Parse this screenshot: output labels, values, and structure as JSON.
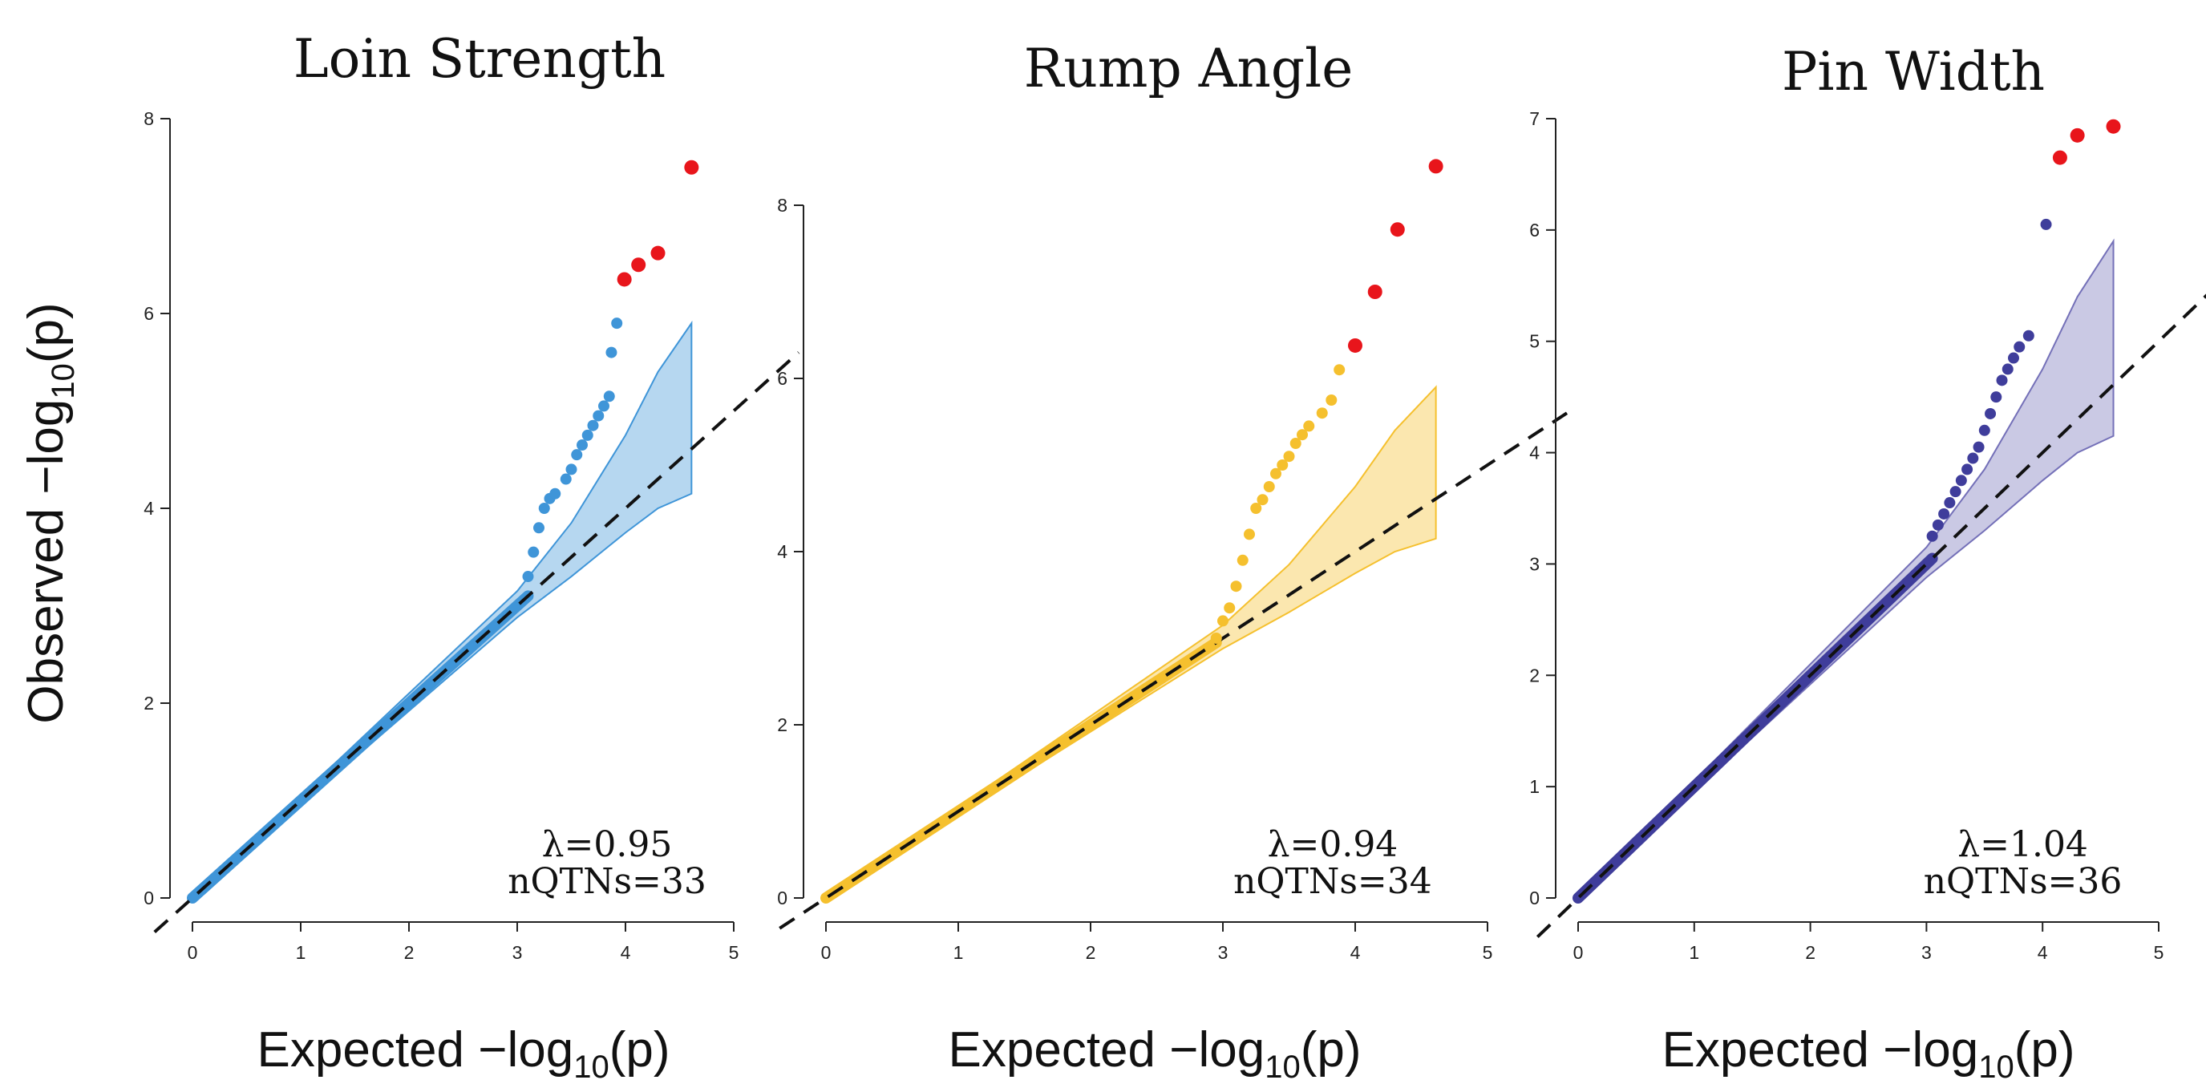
{
  "x_axis_title": {
    "prefix": "Expected  −log",
    "sub": "10",
    "suffix": "(p)"
  },
  "y_axis_title": {
    "prefix": "Observed  −log",
    "sub": "10",
    "suffix": "(p)"
  },
  "chart_data": [
    {
      "type": "scatter",
      "title": "Loin Strength",
      "color": "#3f95d8",
      "band_color": "#3f95d8",
      "highlight_color": "#e8151b",
      "xlim": [
        0,
        5
      ],
      "ylim": [
        0,
        8
      ],
      "xticks": [
        0,
        1,
        2,
        3,
        4,
        5
      ],
      "yticks": [
        0,
        2,
        4,
        6,
        8
      ],
      "lambda_label": "λ=0.95",
      "nqtn_label": "nQTNs=33",
      "confidence_band": {
        "x": [
          3.0,
          3.5,
          4.0,
          4.3,
          4.61
        ],
        "upper": [
          3.15,
          3.85,
          4.75,
          5.4,
          5.9
        ],
        "lower": [
          2.88,
          3.3,
          3.75,
          4.0,
          4.15
        ]
      },
      "points": [
        [
          3.1,
          3.3
        ],
        [
          3.15,
          3.55
        ],
        [
          3.2,
          3.8
        ],
        [
          3.25,
          4.0
        ],
        [
          3.3,
          4.1
        ],
        [
          3.35,
          4.15
        ],
        [
          3.45,
          4.3
        ],
        [
          3.5,
          4.4
        ],
        [
          3.55,
          4.55
        ],
        [
          3.6,
          4.65
        ],
        [
          3.65,
          4.75
        ],
        [
          3.7,
          4.85
        ],
        [
          3.75,
          4.95
        ],
        [
          3.8,
          5.05
        ],
        [
          3.85,
          5.15
        ],
        [
          3.87,
          5.6
        ],
        [
          3.92,
          5.9
        ]
      ],
      "highlight_points": [
        [
          3.99,
          6.35
        ],
        [
          4.12,
          6.5
        ],
        [
          4.3,
          6.62
        ],
        [
          4.61,
          7.5
        ]
      ]
    },
    {
      "type": "scatter",
      "title": "Rump Angle",
      "color": "#f5c02e",
      "band_color": "#f5c02e",
      "highlight_color": "#e8151b",
      "xlim": [
        0,
        5
      ],
      "ylim": [
        0,
        9
      ],
      "xticks": [
        0,
        1,
        2,
        3,
        4,
        5
      ],
      "yticks": [
        0,
        2,
        4,
        6,
        8
      ],
      "lambda_label": "λ=0.94",
      "nqtn_label": "nQTNs=34",
      "confidence_band": {
        "x": [
          3.0,
          3.5,
          4.0,
          4.3,
          4.61
        ],
        "upper": [
          3.15,
          3.85,
          4.75,
          5.4,
          5.9
        ],
        "lower": [
          2.88,
          3.3,
          3.75,
          4.0,
          4.15
        ]
      },
      "points": [
        [
          2.95,
          3.0
        ],
        [
          3.0,
          3.2
        ],
        [
          3.05,
          3.35
        ],
        [
          3.1,
          3.6
        ],
        [
          3.15,
          3.9
        ],
        [
          3.2,
          4.2
        ],
        [
          3.25,
          4.5
        ],
        [
          3.3,
          4.6
        ],
        [
          3.35,
          4.75
        ],
        [
          3.4,
          4.9
        ],
        [
          3.45,
          5.0
        ],
        [
          3.5,
          5.1
        ],
        [
          3.55,
          5.25
        ],
        [
          3.6,
          5.35
        ],
        [
          3.65,
          5.45
        ],
        [
          3.75,
          5.6
        ],
        [
          3.82,
          5.75
        ],
        [
          3.88,
          6.1
        ]
      ],
      "highlight_points": [
        [
          4.0,
          6.38
        ],
        [
          4.15,
          7.0
        ],
        [
          4.32,
          7.72
        ],
        [
          4.61,
          8.45
        ]
      ]
    },
    {
      "type": "scatter",
      "title": "Pin Width",
      "color": "#3f3d9b",
      "band_color": "#7470b8",
      "highlight_color": "#e8151b",
      "xlim": [
        0,
        5
      ],
      "ylim": [
        0,
        7
      ],
      "xticks": [
        0,
        1,
        2,
        3,
        4,
        5
      ],
      "yticks": [
        0,
        1,
        2,
        3,
        4,
        5,
        6,
        7
      ],
      "lambda_label": "λ=1.04",
      "nqtn_label": "nQTNs=36",
      "confidence_band": {
        "x": [
          3.0,
          3.5,
          4.0,
          4.3,
          4.61
        ],
        "upper": [
          3.15,
          3.85,
          4.75,
          5.4,
          5.9
        ],
        "lower": [
          2.88,
          3.3,
          3.75,
          4.0,
          4.15
        ]
      },
      "points": [
        [
          3.05,
          3.25
        ],
        [
          3.1,
          3.35
        ],
        [
          3.15,
          3.45
        ],
        [
          3.2,
          3.55
        ],
        [
          3.25,
          3.65
        ],
        [
          3.3,
          3.75
        ],
        [
          3.35,
          3.85
        ],
        [
          3.4,
          3.95
        ],
        [
          3.45,
          4.05
        ],
        [
          3.5,
          4.2
        ],
        [
          3.55,
          4.35
        ],
        [
          3.6,
          4.5
        ],
        [
          3.65,
          4.65
        ],
        [
          3.7,
          4.75
        ],
        [
          3.75,
          4.85
        ],
        [
          3.8,
          4.95
        ],
        [
          3.88,
          5.05
        ],
        [
          4.03,
          6.05
        ]
      ],
      "highlight_points": [
        [
          4.15,
          6.65
        ],
        [
          4.3,
          6.85
        ],
        [
          4.61,
          6.93
        ]
      ]
    }
  ]
}
